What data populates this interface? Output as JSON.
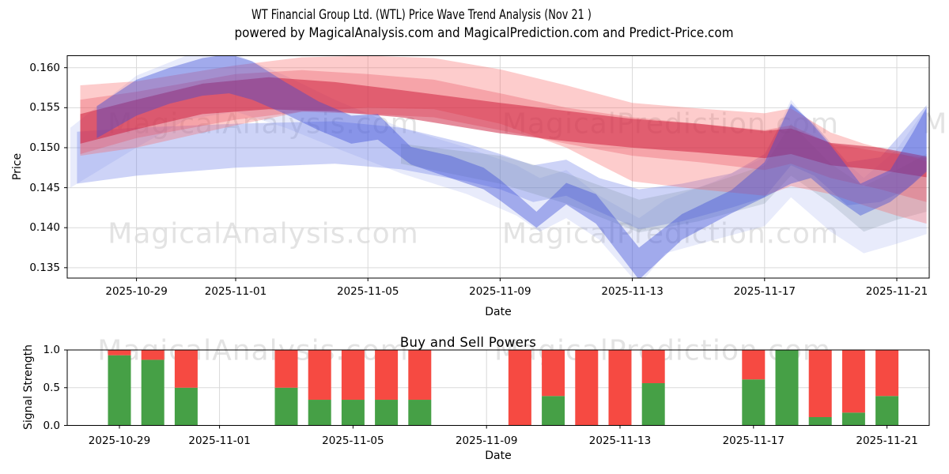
{
  "header": {
    "title": "WT Financial Group Ltd. (WTL) Price Wave Trend Analysis (Nov 21 )",
    "subtitle": "powered by MagicalAnalysis.com and MagicalPrediction.com and Predict-Price.com"
  },
  "watermarks": {
    "analysis": "MagicalAnalysis.com",
    "prediction": "MagicalPrediction.com"
  },
  "chart_data": [
    {
      "type": "area",
      "name": "price_wave_trend",
      "ylabel": "Price",
      "xlabel": "Date",
      "x_base_date": "2025-10-27",
      "xlim_days": [
        -0.1,
        26.0
      ],
      "ylim": [
        0.1337,
        0.1615
      ],
      "grid": true,
      "legend": "none",
      "xticks": [
        "2025-10-29",
        "2025-11-01",
        "2025-11-05",
        "2025-11-09",
        "2025-11-13",
        "2025-11-17",
        "2025-11-21"
      ],
      "yticks": [
        [
          0.135,
          "0.135"
        ],
        [
          0.14,
          "0.140"
        ],
        [
          0.145,
          "0.145"
        ],
        [
          0.15,
          "0.150"
        ],
        [
          0.155,
          "0.155"
        ],
        [
          0.16,
          "0.160"
        ]
      ],
      "bands_note": "points are [day_offset_from_base_date, lower_price, upper_price]",
      "bands": [
        {
          "name": "blue-faint-envelope",
          "color": "#8090e8",
          "opacity": 0.18,
          "points": [
            [
              0,
              0.145,
              0.1525
            ],
            [
              2,
              0.15,
              0.159
            ],
            [
              3.5,
              0.1535,
              0.1615
            ],
            [
              5,
              0.1545,
              0.1617
            ],
            [
              6.5,
              0.1525,
              0.159
            ],
            [
              8,
              0.15,
              0.156
            ],
            [
              10,
              0.1468,
              0.1525
            ],
            [
              12,
              0.1442,
              0.15
            ],
            [
              13.5,
              0.1415,
              0.1478
            ],
            [
              14.2,
              0.1395,
              0.1462
            ],
            [
              15,
              0.1412,
              0.1472
            ],
            [
              16,
              0.1385,
              0.144
            ],
            [
              17.2,
              0.1328,
              0.1412
            ],
            [
              18,
              0.1368,
              0.1435
            ],
            [
              19.5,
              0.1385,
              0.1458
            ],
            [
              21,
              0.1402,
              0.1488
            ],
            [
              21.8,
              0.1438,
              0.156
            ],
            [
              23,
              0.1395,
              0.15
            ],
            [
              24,
              0.1368,
              0.1462
            ],
            [
              25,
              0.138,
              0.1498
            ],
            [
              25.9,
              0.1392,
              0.155
            ]
          ]
        },
        {
          "name": "blue-wide-band",
          "color": "#7080e8",
          "opacity": 0.35,
          "points": [
            [
              0.2,
              0.1455,
              0.152
            ],
            [
              2,
              0.1465,
              0.1525
            ],
            [
              5,
              0.1475,
              0.153
            ],
            [
              8,
              0.148,
              0.1533
            ],
            [
              10,
              0.1473,
              0.1525
            ],
            [
              12,
              0.1458,
              0.1505
            ],
            [
              13,
              0.1448,
              0.1492
            ],
            [
              14,
              0.1432,
              0.1478
            ],
            [
              15,
              0.144,
              0.1485
            ],
            [
              16,
              0.142,
              0.1462
            ],
            [
              17.2,
              0.1398,
              0.1448
            ],
            [
              18.5,
              0.1408,
              0.1455
            ],
            [
              20,
              0.1425,
              0.1468
            ],
            [
              21,
              0.1438,
              0.1492
            ],
            [
              21.8,
              0.1478,
              0.1553
            ],
            [
              22.5,
              0.1465,
              0.153
            ],
            [
              23.5,
              0.1428,
              0.1482
            ],
            [
              24.5,
              0.1432,
              0.1488
            ],
            [
              25.3,
              0.1448,
              0.1525
            ],
            [
              25.9,
              0.1472,
              0.1553
            ]
          ]
        },
        {
          "name": "gray-blue-band",
          "color": "#708898",
          "opacity": 0.22,
          "points": [
            [
              10,
              0.148,
              0.1505
            ],
            [
              13,
              0.1455,
              0.149
            ],
            [
              15,
              0.143,
              0.1468
            ],
            [
              17.2,
              0.1394,
              0.1435
            ],
            [
              19,
              0.1408,
              0.145
            ],
            [
              21,
              0.143,
              0.1478
            ],
            [
              21.8,
              0.1465,
              0.153
            ],
            [
              23,
              0.143,
              0.148
            ],
            [
              24,
              0.1395,
              0.1452
            ],
            [
              25,
              0.141,
              0.1472
            ],
            [
              25.9,
              0.142,
              0.1492
            ]
          ]
        },
        {
          "name": "red-outer-band",
          "color": "#f86060",
          "opacity": 0.32,
          "points": [
            [
              0.3,
              0.149,
              0.1578
            ],
            [
              2,
              0.15,
              0.1583
            ],
            [
              5,
              0.1528,
              0.1603
            ],
            [
              7,
              0.1545,
              0.1613
            ],
            [
              9,
              0.155,
              0.1615
            ],
            [
              11,
              0.1548,
              0.1612
            ],
            [
              13,
              0.153,
              0.1598
            ],
            [
              15,
              0.15,
              0.1578
            ],
            [
              17,
              0.1458,
              0.1556
            ],
            [
              19,
              0.1448,
              0.1549
            ],
            [
              21,
              0.144,
              0.1543
            ],
            [
              21.8,
              0.1452,
              0.1549
            ],
            [
              23,
              0.1442,
              0.1519
            ],
            [
              24,
              0.1428,
              0.1505
            ],
            [
              25,
              0.1415,
              0.1494
            ],
            [
              25.9,
              0.1405,
              0.1483
            ]
          ]
        },
        {
          "name": "red-mid-band",
          "color": "#e84858",
          "opacity": 0.3,
          "points": [
            [
              0.3,
              0.1492,
              0.156
            ],
            [
              2,
              0.1512,
              0.157
            ],
            [
              5,
              0.1535,
              0.1592
            ],
            [
              7,
              0.1545,
              0.1597
            ],
            [
              9,
              0.1542,
              0.1592
            ],
            [
              11,
              0.1538,
              0.1585
            ],
            [
              13,
              0.1522,
              0.1568
            ],
            [
              15,
              0.1505,
              0.155
            ],
            [
              17,
              0.149,
              0.1538
            ],
            [
              19,
              0.1482,
              0.153
            ],
            [
              21,
              0.1472,
              0.1522
            ],
            [
              21.8,
              0.148,
              0.1528
            ],
            [
              23,
              0.1462,
              0.1505
            ],
            [
              24.5,
              0.1448,
              0.1495
            ],
            [
              25.9,
              0.1432,
              0.1487
            ]
          ]
        },
        {
          "name": "red-core-band",
          "color": "#cc1838",
          "opacity": 0.5,
          "points": [
            [
              0.3,
              0.1505,
              0.1542
            ],
            [
              2,
              0.1523,
              0.156
            ],
            [
              4,
              0.1542,
              0.158
            ],
            [
              6,
              0.1548,
              0.1588
            ],
            [
              8,
              0.1545,
              0.1582
            ],
            [
              10,
              0.1538,
              0.1572
            ],
            [
              13,
              0.1518,
              0.1556
            ],
            [
              15,
              0.1508,
              0.1546
            ],
            [
              17,
              0.15,
              0.1536
            ],
            [
              19,
              0.1494,
              0.153
            ],
            [
              21,
              0.1487,
              0.1521
            ],
            [
              21.8,
              0.1492,
              0.1524
            ],
            [
              23,
              0.1478,
              0.1506
            ],
            [
              24.5,
              0.1472,
              0.15
            ],
            [
              25.9,
              0.1463,
              0.1489
            ]
          ]
        },
        {
          "name": "blue-dark-strand",
          "color": "#3848d8",
          "opacity": 0.4,
          "points": [
            [
              0.8,
              0.1512,
              0.1552
            ],
            [
              2,
              0.154,
              0.1585
            ],
            [
              3,
              0.1555,
              0.16
            ],
            [
              4,
              0.1565,
              0.1612
            ],
            [
              4.8,
              0.1568,
              0.1617
            ],
            [
              5.5,
              0.156,
              0.1608
            ],
            [
              6.5,
              0.1542,
              0.1582
            ],
            [
              7.5,
              0.1522,
              0.1558
            ],
            [
              8.5,
              0.1505,
              0.154
            ],
            [
              9.3,
              0.151,
              0.1542
            ],
            [
              10.3,
              0.1479,
              0.1501
            ],
            [
              11.5,
              0.1462,
              0.149
            ],
            [
              12.5,
              0.1448,
              0.1475
            ],
            [
              13,
              0.1434,
              0.146
            ],
            [
              14.1,
              0.14,
              0.142
            ],
            [
              15,
              0.1429,
              0.1456
            ],
            [
              15.9,
              0.1405,
              0.1442
            ],
            [
              17.2,
              0.1335,
              0.1375
            ],
            [
              18.5,
              0.1385,
              0.1417
            ],
            [
              20,
              0.1418,
              0.1447
            ],
            [
              21,
              0.1438,
              0.1482
            ],
            [
              21.8,
              0.1455,
              0.1555
            ],
            [
              22.4,
              0.1462,
              0.1532
            ],
            [
              23,
              0.1441,
              0.1503
            ],
            [
              23.9,
              0.1415,
              0.1455
            ],
            [
              24.8,
              0.1432,
              0.1472
            ],
            [
              25.5,
              0.1455,
              0.152
            ],
            [
              25.9,
              0.147,
              0.155
            ]
          ]
        }
      ]
    },
    {
      "type": "bar",
      "name": "buy_sell_powers",
      "title": "Buy and Sell Powers",
      "ylabel": "Signal Strength",
      "xlabel": "Date",
      "stacked": true,
      "x_base_date": "2025-10-27",
      "xlim_days": [
        0.4,
        26.3
      ],
      "ylim": [
        0.0,
        1.0
      ],
      "grid": true,
      "xticks": [
        "2025-10-29",
        "2025-11-01",
        "2025-11-05",
        "2025-11-09",
        "2025-11-13",
        "2025-11-17",
        "2025-11-21"
      ],
      "yticks": [
        [
          0.0,
          "0.0"
        ],
        [
          0.5,
          "0.5"
        ],
        [
          1.0,
          "1.0"
        ]
      ],
      "categories": [
        "2025-10-29",
        "2025-10-30",
        "2025-10-31",
        "2025-11-03",
        "2025-11-04",
        "2025-11-05",
        "2025-11-06",
        "2025-11-07",
        "2025-11-10",
        "2025-11-11",
        "2025-11-12",
        "2025-11-13",
        "2025-11-14",
        "2025-11-17",
        "2025-11-18",
        "2025-11-19",
        "2025-11-20",
        "2025-11-21"
      ],
      "series": [
        {
          "name": "Buy",
          "color": "#46a046",
          "values": [
            0.93,
            0.87,
            0.5,
            0.5,
            0.34,
            0.34,
            0.34,
            0.34,
            0.0,
            0.39,
            0.0,
            0.0,
            0.56,
            0.61,
            1.0,
            0.11,
            0.17,
            0.39
          ]
        },
        {
          "name": "Sell",
          "color": "#f64a42",
          "values": [
            0.07,
            0.13,
            0.5,
            0.5,
            0.66,
            0.66,
            0.66,
            0.66,
            1.0,
            0.61,
            1.0,
            1.0,
            0.44,
            0.39,
            0.0,
            0.89,
            0.83,
            0.61
          ]
        }
      ]
    }
  ]
}
